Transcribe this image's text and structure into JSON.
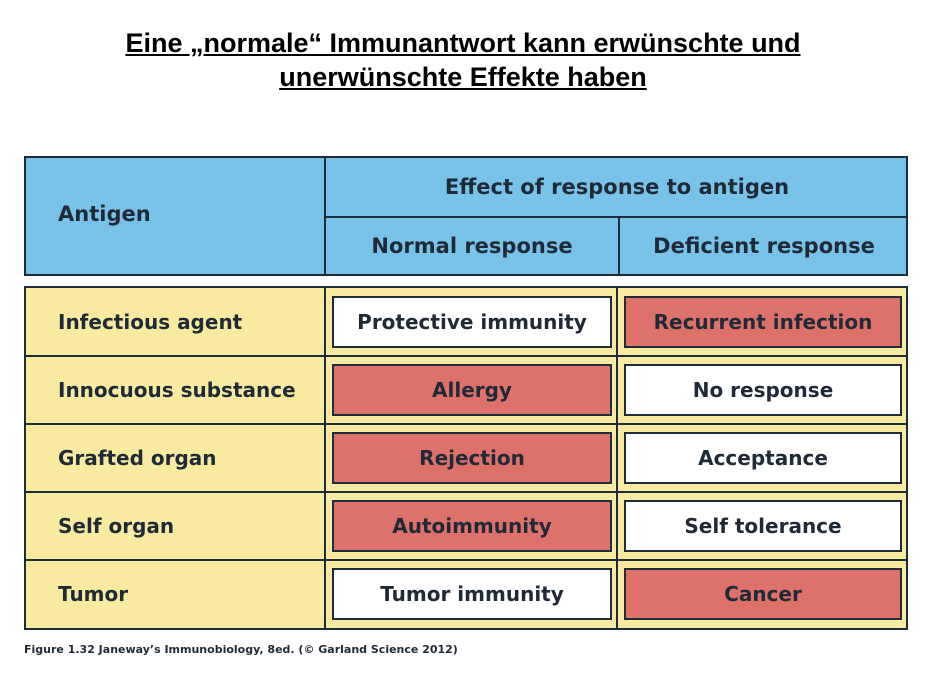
{
  "title": {
    "line1": "Eine „normale“ Immunantwort kann erwünschte und",
    "line2": "unerwünschte Effekte haben"
  },
  "table": {
    "header_antigen": "Antigen",
    "header_effect": "Effect of response to antigen",
    "header_normal": "Normal response",
    "header_deficient": "Deficient response",
    "rows": [
      {
        "antigen": "Infectious agent",
        "normal": "Protective immunity",
        "deficient": "Recurrent infection"
      },
      {
        "antigen": "Innocuous substance",
        "normal": "Allergy",
        "deficient": "No response"
      },
      {
        "antigen": "Grafted organ",
        "normal": "Rejection",
        "deficient": "Acceptance"
      },
      {
        "antigen": "Self organ",
        "normal": "Autoimmunity",
        "deficient": "Self tolerance"
      },
      {
        "antigen": "Tumor",
        "normal": "Tumor immunity",
        "deficient": "Cancer"
      }
    ]
  },
  "colors": {
    "header_bg": "#79c3e9",
    "body_bg": "#f8eba1",
    "desirable": "#ffffff",
    "undesirable": "#df716b"
  },
  "caption": "Figure 1.32  Janeway’s Immunobiology, 8ed. (© Garland Science 2012)"
}
